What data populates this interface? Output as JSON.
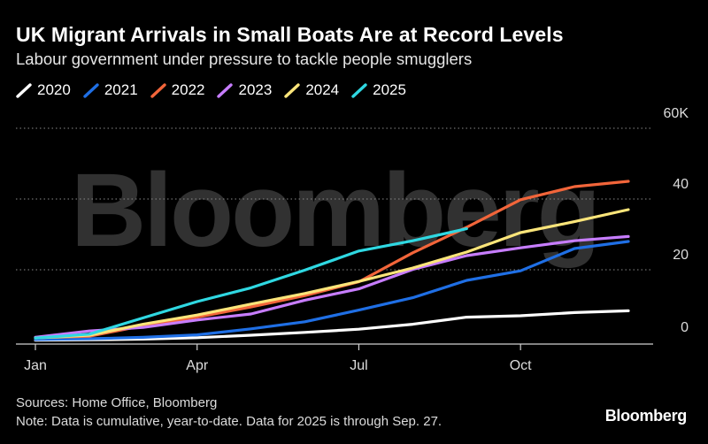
{
  "title": "UK Migrant Arrivals in Small Boats Are at Record Levels",
  "subtitle": "Labour government under pressure to tackle people smugglers",
  "watermark": "Bloomberg",
  "footer": {
    "sources": "Sources: Home Office, Bloomberg",
    "note": "Note: Data is cumulative, year-to-date. Data for 2025 is through Sep. 27."
  },
  "brand": "Bloomberg",
  "chart_data": {
    "type": "line",
    "title": "UK Migrant Arrivals in Small Boats Are at Record Levels",
    "subtitle": "Labour government under pressure to tackle people smugglers",
    "xlabel": "",
    "ylabel": "",
    "x_tick_labels": [
      "Jan",
      "Apr",
      "Jul",
      "Oct"
    ],
    "x_tick_months": [
      1,
      4,
      7,
      10
    ],
    "y_tick_labels": [
      "60K",
      "40",
      "20",
      "0"
    ],
    "y_tick_values": [
      60,
      40,
      20,
      0
    ],
    "ylim": [
      0,
      60
    ],
    "xlim": [
      1,
      12
    ],
    "grid": "horizontal dotted",
    "legend_position": "top-left",
    "series": [
      {
        "name": "2020",
        "color": "#ffffff",
        "x": [
          1,
          2,
          3,
          4,
          5,
          6,
          7,
          8,
          9,
          10,
          11,
          12
        ],
        "y": [
          0.1,
          0.2,
          0.4,
          0.8,
          1.5,
          2.3,
          3.2,
          4.6,
          6.6,
          7.0,
          7.9,
          8.4
        ]
      },
      {
        "name": "2021",
        "color": "#1f6fe5",
        "x": [
          1,
          2,
          3,
          4,
          5,
          6,
          7,
          8,
          9,
          10,
          11,
          12
        ],
        "y": [
          0.3,
          0.5,
          0.9,
          1.6,
          3.3,
          5.3,
          8.6,
          12.1,
          17.0,
          19.7,
          26.0,
          28.0
        ]
      },
      {
        "name": "2022",
        "color": "#f2653a",
        "x": [
          1,
          2,
          3,
          4,
          5,
          6,
          7,
          8,
          9,
          10,
          11,
          12
        ],
        "y": [
          0.8,
          1.2,
          4.2,
          6.6,
          9.5,
          12.7,
          16.6,
          24.8,
          32.0,
          39.8,
          43.5,
          45.0
        ]
      },
      {
        "name": "2023",
        "color": "#c77dff",
        "x": [
          1,
          2,
          3,
          4,
          5,
          6,
          7,
          8,
          9,
          10,
          11,
          12
        ],
        "y": [
          0.9,
          2.7,
          3.7,
          5.8,
          7.5,
          11.4,
          14.6,
          20.1,
          24.0,
          26.2,
          28.2,
          29.4
        ]
      },
      {
        "name": "2024",
        "color": "#fbe57a",
        "x": [
          1,
          2,
          3,
          4,
          5,
          6,
          7,
          8,
          9,
          10,
          11,
          12
        ],
        "y": [
          0.7,
          1.5,
          4.6,
          7.2,
          10.3,
          13.3,
          16.7,
          20.5,
          25.0,
          30.5,
          33.6,
          37.0
        ]
      },
      {
        "name": "2025",
        "color": "#2fd8e2",
        "x": [
          1,
          2,
          3,
          4,
          5,
          6,
          7,
          8,
          9
        ],
        "y": [
          0.7,
          1.8,
          6.4,
          11.0,
          14.9,
          19.9,
          25.3,
          28.2,
          31.6
        ]
      }
    ]
  }
}
